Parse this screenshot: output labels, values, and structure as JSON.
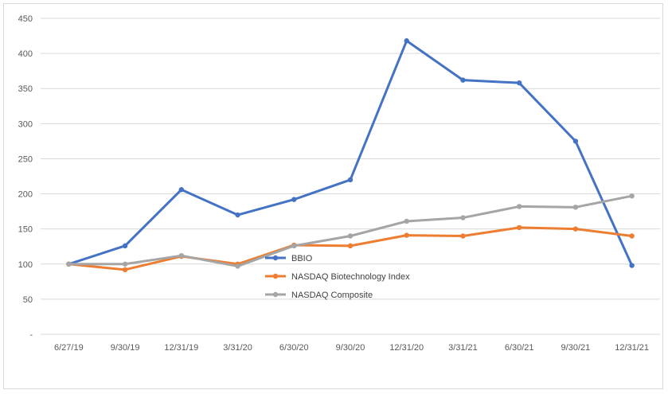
{
  "chart_data": {
    "type": "line",
    "title": "",
    "xlabel": "",
    "ylabel": "",
    "x": [
      "6/27/19",
      "9/30/19",
      "12/31/19",
      "3/31/20",
      "6/30/20",
      "9/30/20",
      "12/31/20",
      "3/31/21",
      "6/30/21",
      "9/30/21",
      "12/31/21"
    ],
    "ylim": [
      0,
      450
    ],
    "yticks": [
      {
        "value": 0,
        "label": "-"
      },
      {
        "value": 50,
        "label": "50"
      },
      {
        "value": 100,
        "label": "100"
      },
      {
        "value": 150,
        "label": "150"
      },
      {
        "value": 200,
        "label": "200"
      },
      {
        "value": 250,
        "label": "250"
      },
      {
        "value": 300,
        "label": "300"
      },
      {
        "value": 350,
        "label": "350"
      },
      {
        "value": 400,
        "label": "400"
      },
      {
        "value": 450,
        "label": "450"
      }
    ],
    "grid": "horizontal",
    "legend_position": "center",
    "series": [
      {
        "name": "BBIO",
        "color": "#4472C4",
        "values": [
          100,
          126,
          206,
          170,
          192,
          220,
          418,
          362,
          358,
          275,
          98
        ]
      },
      {
        "name": "NASDAQ Biotechnology Index",
        "color": "#ED7D31",
        "values": [
          100,
          92,
          111,
          100,
          127,
          126,
          141,
          140,
          152,
          150,
          140
        ]
      },
      {
        "name": "NASDAQ Composite",
        "color": "#A5A5A5",
        "values": [
          100,
          100,
          112,
          97,
          126,
          140,
          161,
          166,
          182,
          181,
          197
        ]
      }
    ]
  }
}
